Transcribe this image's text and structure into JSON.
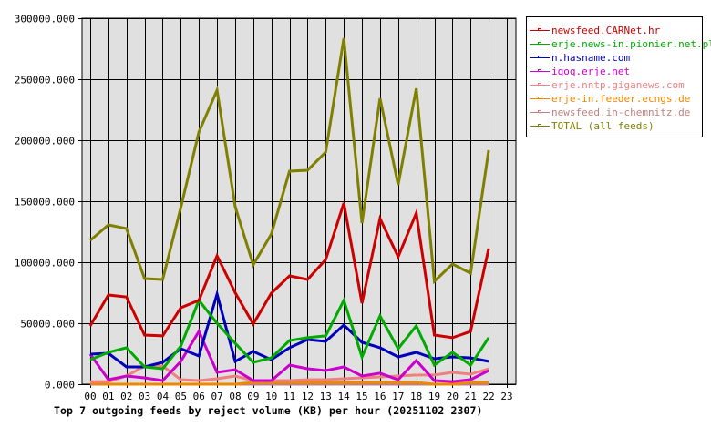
{
  "chart_data": {
    "type": "line",
    "title": "Top 7 outgoing feeds by reject volume (KB) per hour (20251102 2307)",
    "xlabel": "",
    "ylabel": "",
    "ylim": [
      0,
      300000
    ],
    "y_ticks": [
      "0.000",
      "50000.000",
      "100000.000",
      "150000.000",
      "200000.000",
      "250000.000",
      "300000.000"
    ],
    "x": [
      "00",
      "01",
      "02",
      "03",
      "04",
      "05",
      "06",
      "07",
      "08",
      "09",
      "10",
      "11",
      "12",
      "13",
      "14",
      "15",
      "16",
      "17",
      "18",
      "19",
      "20",
      "21",
      "22",
      "23"
    ],
    "grid": true,
    "legend_position": "right",
    "series": [
      {
        "name": "newsfeed.CARNet.hr",
        "color": "#cc0000",
        "values": [
          47800,
          73100,
          71600,
          40300,
          39600,
          62700,
          68700,
          105200,
          75000,
          49300,
          74600,
          88800,
          85800,
          102200,
          148500,
          66400,
          135800,
          104500,
          140300,
          40300,
          38100,
          43300,
          111200
        ]
      },
      {
        "name": "erje.news-in.pionier.net.pl",
        "color": "#00aa00",
        "values": [
          20100,
          26100,
          29900,
          14200,
          12700,
          31300,
          68700,
          50000,
          33600,
          17900,
          21600,
          35800,
          38100,
          39600,
          68700,
          22400,
          56000,
          29100,
          47800,
          15700,
          26100,
          15700,
          38100
        ]
      },
      {
        "name": "n.hasname.com",
        "color": "#0000bb",
        "values": [
          24600,
          25400,
          14200,
          14200,
          17900,
          29100,
          23100,
          73900,
          18700,
          26900,
          20100,
          29900,
          36600,
          35100,
          48500,
          34300,
          29900,
          22400,
          26100,
          20900,
          22400,
          21600,
          18700
        ]
      },
      {
        "name": "iqoq.erje.net",
        "color": "#cc00cc",
        "values": [
          24600,
          3700,
          6700,
          5200,
          3000,
          18700,
          43300,
          9700,
          11900,
          3000,
          3000,
          15700,
          12700,
          11200,
          14200,
          6700,
          9000,
          3700,
          19400,
          3000,
          2200,
          3700,
          11200
        ]
      },
      {
        "name": "erje.nntp.giganews.com",
        "color": "#f08080",
        "values": [
          2200,
          2200,
          6700,
          14900,
          14900,
          3700,
          3000,
          4500,
          6700,
          3000,
          3000,
          3000,
          3700,
          3700,
          4500,
          5200,
          6000,
          6700,
          7500,
          7500,
          9700,
          8200,
          12700
        ]
      },
      {
        "name": "erje-in.feeder.ecngs.de",
        "color": "#ee8800",
        "values": [
          500,
          0,
          0,
          0,
          0,
          0,
          0,
          0,
          0,
          1500,
          1500,
          1500,
          1500,
          1500,
          1500,
          1500,
          1500,
          1500,
          1500,
          0,
          0,
          1500,
          1500
        ]
      },
      {
        "name": "newsfeed.in-chemnitz.de",
        "color": "#c08080",
        "values": [
          0,
          0,
          0,
          0,
          0,
          0,
          0,
          0,
          0,
          0,
          0,
          0,
          0,
          0,
          0,
          0,
          0,
          0,
          0,
          0,
          0,
          0,
          0
        ]
      },
      {
        "name": "TOTAL (all feeds)",
        "color": "#808000",
        "values": [
          117900,
          130600,
          127600,
          86600,
          85800,
          145000,
          206700,
          241000,
          145500,
          97800,
          123100,
          174600,
          175400,
          190300,
          283600,
          132100,
          234300,
          163400,
          242500,
          84300,
          98500,
          91000,
          191800
        ]
      }
    ]
  },
  "title": "Top 7 outgoing feeds by reject volume (KB) per hour (20251102 2307)",
  "legend": [
    {
      "label": "newsfeed.CARNet.hr",
      "color": "#cc0000"
    },
    {
      "label": "erje.news-in.pionier.net.pl",
      "color": "#00aa00"
    },
    {
      "label": "n.hasname.com",
      "color": "#0000bb"
    },
    {
      "label": "iqoq.erje.net",
      "color": "#cc00cc"
    },
    {
      "label": "erje.nntp.giganews.com",
      "color": "#f08080"
    },
    {
      "label": "erje-in.feeder.ecngs.de",
      "color": "#ee8800"
    },
    {
      "label": "newsfeed.in-chemnitz.de",
      "color": "#c08080"
    },
    {
      "label": "TOTAL (all feeds)",
      "color": "#808000"
    }
  ]
}
